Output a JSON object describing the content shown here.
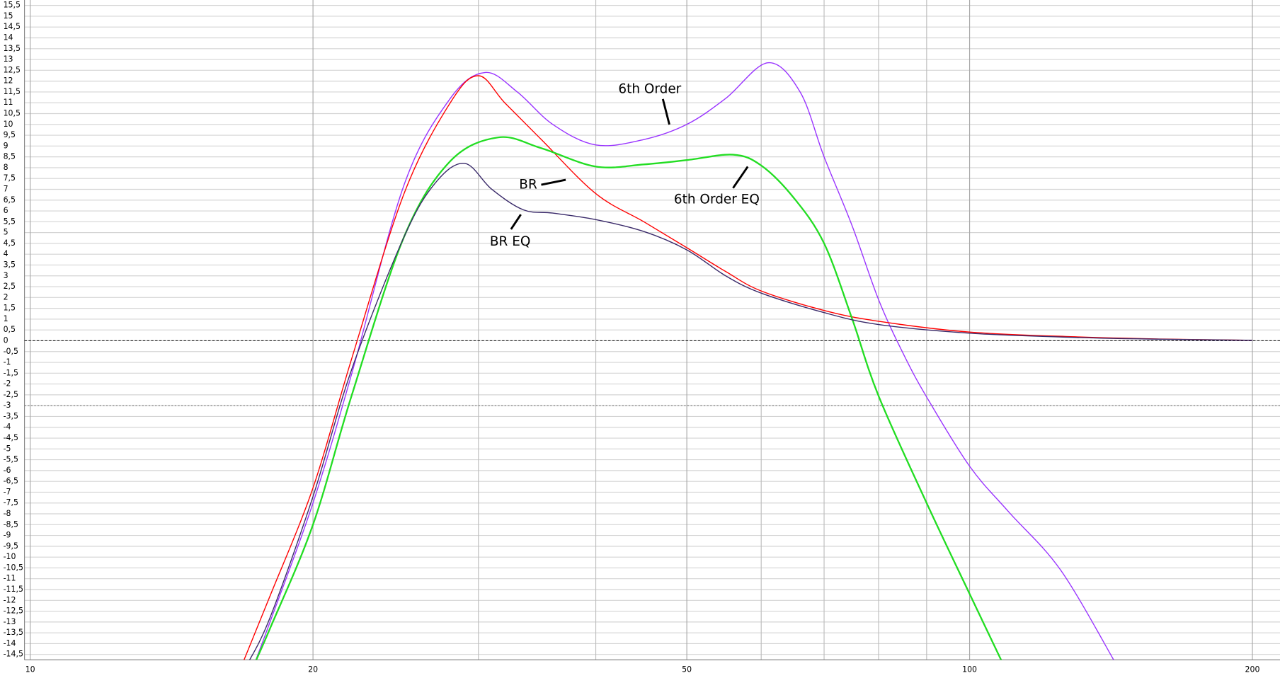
{
  "chart_data": {
    "type": "line",
    "xscale": "log",
    "grid": true,
    "xlim": [
      10,
      214
    ],
    "ylim": [
      -14.75,
      15.75
    ],
    "xticks": [
      10,
      20,
      50,
      100,
      200
    ],
    "xminor": [
      30,
      40,
      60,
      70,
      80,
      90
    ],
    "hlines": [
      0,
      -3
    ],
    "yticks": [
      {
        "value": 15.5,
        "label": "15,5"
      },
      15,
      {
        "value": 14.5,
        "label": "14,5"
      },
      14,
      {
        "value": 13.5,
        "label": "13,5"
      },
      13,
      {
        "value": 12.5,
        "label": "12,5"
      },
      12,
      {
        "value": 11.5,
        "label": "11,5"
      },
      11,
      {
        "value": 10.5,
        "label": "10,5"
      },
      10,
      {
        "value": 9.5,
        "label": "9,5"
      },
      9,
      {
        "value": 8.5,
        "label": "8,5"
      },
      8,
      {
        "value": 7.5,
        "label": "7,5"
      },
      7,
      {
        "value": 6.5,
        "label": "6,5"
      },
      6,
      {
        "value": 5.5,
        "label": "5,5"
      },
      5,
      {
        "value": 4.5,
        "label": "4,5"
      },
      4,
      {
        "value": 3.5,
        "label": "3,5"
      },
      3,
      {
        "value": 2.5,
        "label": "2,5"
      },
      2,
      {
        "value": 1.5,
        "label": "1,5"
      },
      1,
      {
        "value": 0.5,
        "label": "0,5"
      },
      0,
      {
        "value": -0.5,
        "label": "-0,5"
      },
      -1,
      {
        "value": -1.5,
        "label": "-1,5"
      },
      -2,
      {
        "value": -2.5,
        "label": "-2,5"
      },
      -3,
      {
        "value": -3.5,
        "label": "-3,5"
      },
      -4,
      {
        "value": -4.5,
        "label": "-4,5"
      },
      -5,
      {
        "value": -5.5,
        "label": "-5,5"
      },
      -6,
      {
        "value": -6.5,
        "label": "-6,5"
      },
      -7,
      {
        "value": -7.5,
        "label": "-7,5"
      },
      -8,
      {
        "value": -8.5,
        "label": "-8,5"
      },
      -9,
      {
        "value": -9.5,
        "label": "-9,5"
      },
      -10,
      {
        "value": -10.5,
        "label": "-10,5"
      },
      -11,
      {
        "value": -11.5,
        "label": "-11,5"
      },
      -12,
      {
        "value": -12.5,
        "label": "-12,5"
      },
      -13,
      {
        "value": -13.5,
        "label": "-13,5"
      },
      -14,
      {
        "value": -14.5,
        "label": "-14,5"
      }
    ],
    "series": [
      {
        "name": "6th Order",
        "color": "#9933ff",
        "width": 1.2,
        "x": [
          17.3,
          18,
          20,
          22,
          25,
          28,
          30.5,
          33,
          36,
          40,
          45,
          50,
          55,
          61,
          66,
          70,
          75,
          80,
          85,
          90,
          100,
          110,
          125,
          143
        ],
        "values": [
          -15,
          -13,
          -7.5,
          -1.5,
          7.2,
          11.2,
          12.4,
          11.5,
          10,
          9.05,
          9.3,
          10,
          11.2,
          12.85,
          11.5,
          8.5,
          5.3,
          1.9,
          -0.6,
          -2.6,
          -5.8,
          -7.9,
          -10.6,
          -14.9
        ]
      },
      {
        "name": "BR",
        "color": "#ff0000",
        "width": 1.2,
        "x": [
          16.8,
          18,
          20,
          22,
          25,
          28,
          30,
          32,
          35,
          40,
          45,
          50,
          55,
          60,
          70,
          80,
          100,
          130,
          160,
          200
        ],
        "values": [
          -15,
          -11.8,
          -6.8,
          -0.8,
          6.8,
          11,
          12.25,
          11,
          9.3,
          6.8,
          5.5,
          4.3,
          3.2,
          2.3,
          1.4,
          0.9,
          0.4,
          0.18,
          0.08,
          0.02
        ]
      },
      {
        "name": "6th Order EQ",
        "color": "#22dd22",
        "width": 2,
        "x": [
          17.3,
          18,
          20,
          22,
          25,
          28,
          31.5,
          35,
          40,
          45,
          50,
          56,
          60,
          65,
          70,
          75,
          80,
          90,
          100,
          108.7
        ],
        "values": [
          -15,
          -13.3,
          -8.5,
          -2.5,
          4.8,
          8.3,
          9.4,
          8.9,
          8.05,
          8.15,
          8.35,
          8.6,
          8.1,
          6.6,
          4.5,
          1.0,
          -2.55,
          -7.5,
          -11.7,
          -15
        ]
      },
      {
        "name": "BR EQ",
        "color": "#3a2a6a",
        "width": 1.2,
        "x": [
          17,
          18,
          20,
          22,
          25,
          27,
          29,
          31,
          33.5,
          36,
          40,
          45,
          50,
          55,
          60,
          70,
          80,
          100,
          130,
          160,
          200
        ],
        "values": [
          -15,
          -12.8,
          -7.2,
          -1.3,
          4.8,
          7.3,
          8.2,
          7,
          6.05,
          5.9,
          5.6,
          5.05,
          4.2,
          3.0,
          2.2,
          1.3,
          0.75,
          0.35,
          0.15,
          0.07,
          0.02
        ]
      }
    ]
  }
}
